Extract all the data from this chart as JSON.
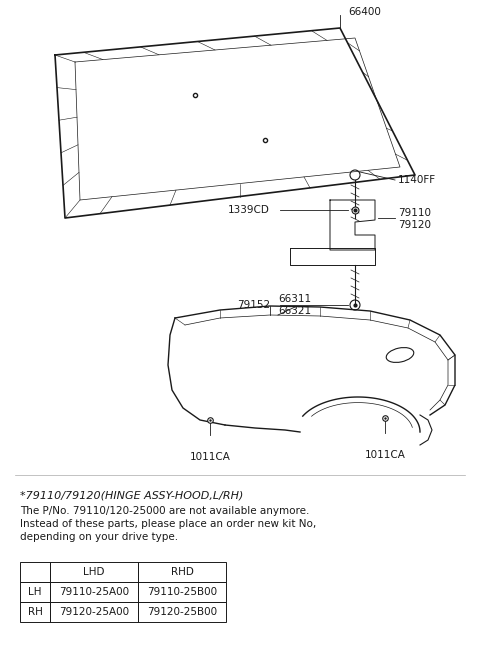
{
  "bg_color": "#ffffff",
  "line_color": "#1a1a1a",
  "note_title": "*79110/79120(HINGE ASSY-HOOD,L/RH)",
  "note_lines": [
    "The P/No. 79110/120-25000 are not available anymore.",
    "Instead of these parts, please place an order new kit No,",
    "depending on your drive type."
  ],
  "table_headers": [
    "",
    "LHD",
    "RHD"
  ],
  "table_rows": [
    [
      "LH",
      "79110-25A00",
      "79110-25B00"
    ],
    [
      "RH",
      "79120-25A00",
      "79120-25B00"
    ]
  ],
  "font_size_label": 7.5,
  "font_size_note_title": 8.0,
  "font_size_note": 7.5,
  "font_size_table": 7.5
}
